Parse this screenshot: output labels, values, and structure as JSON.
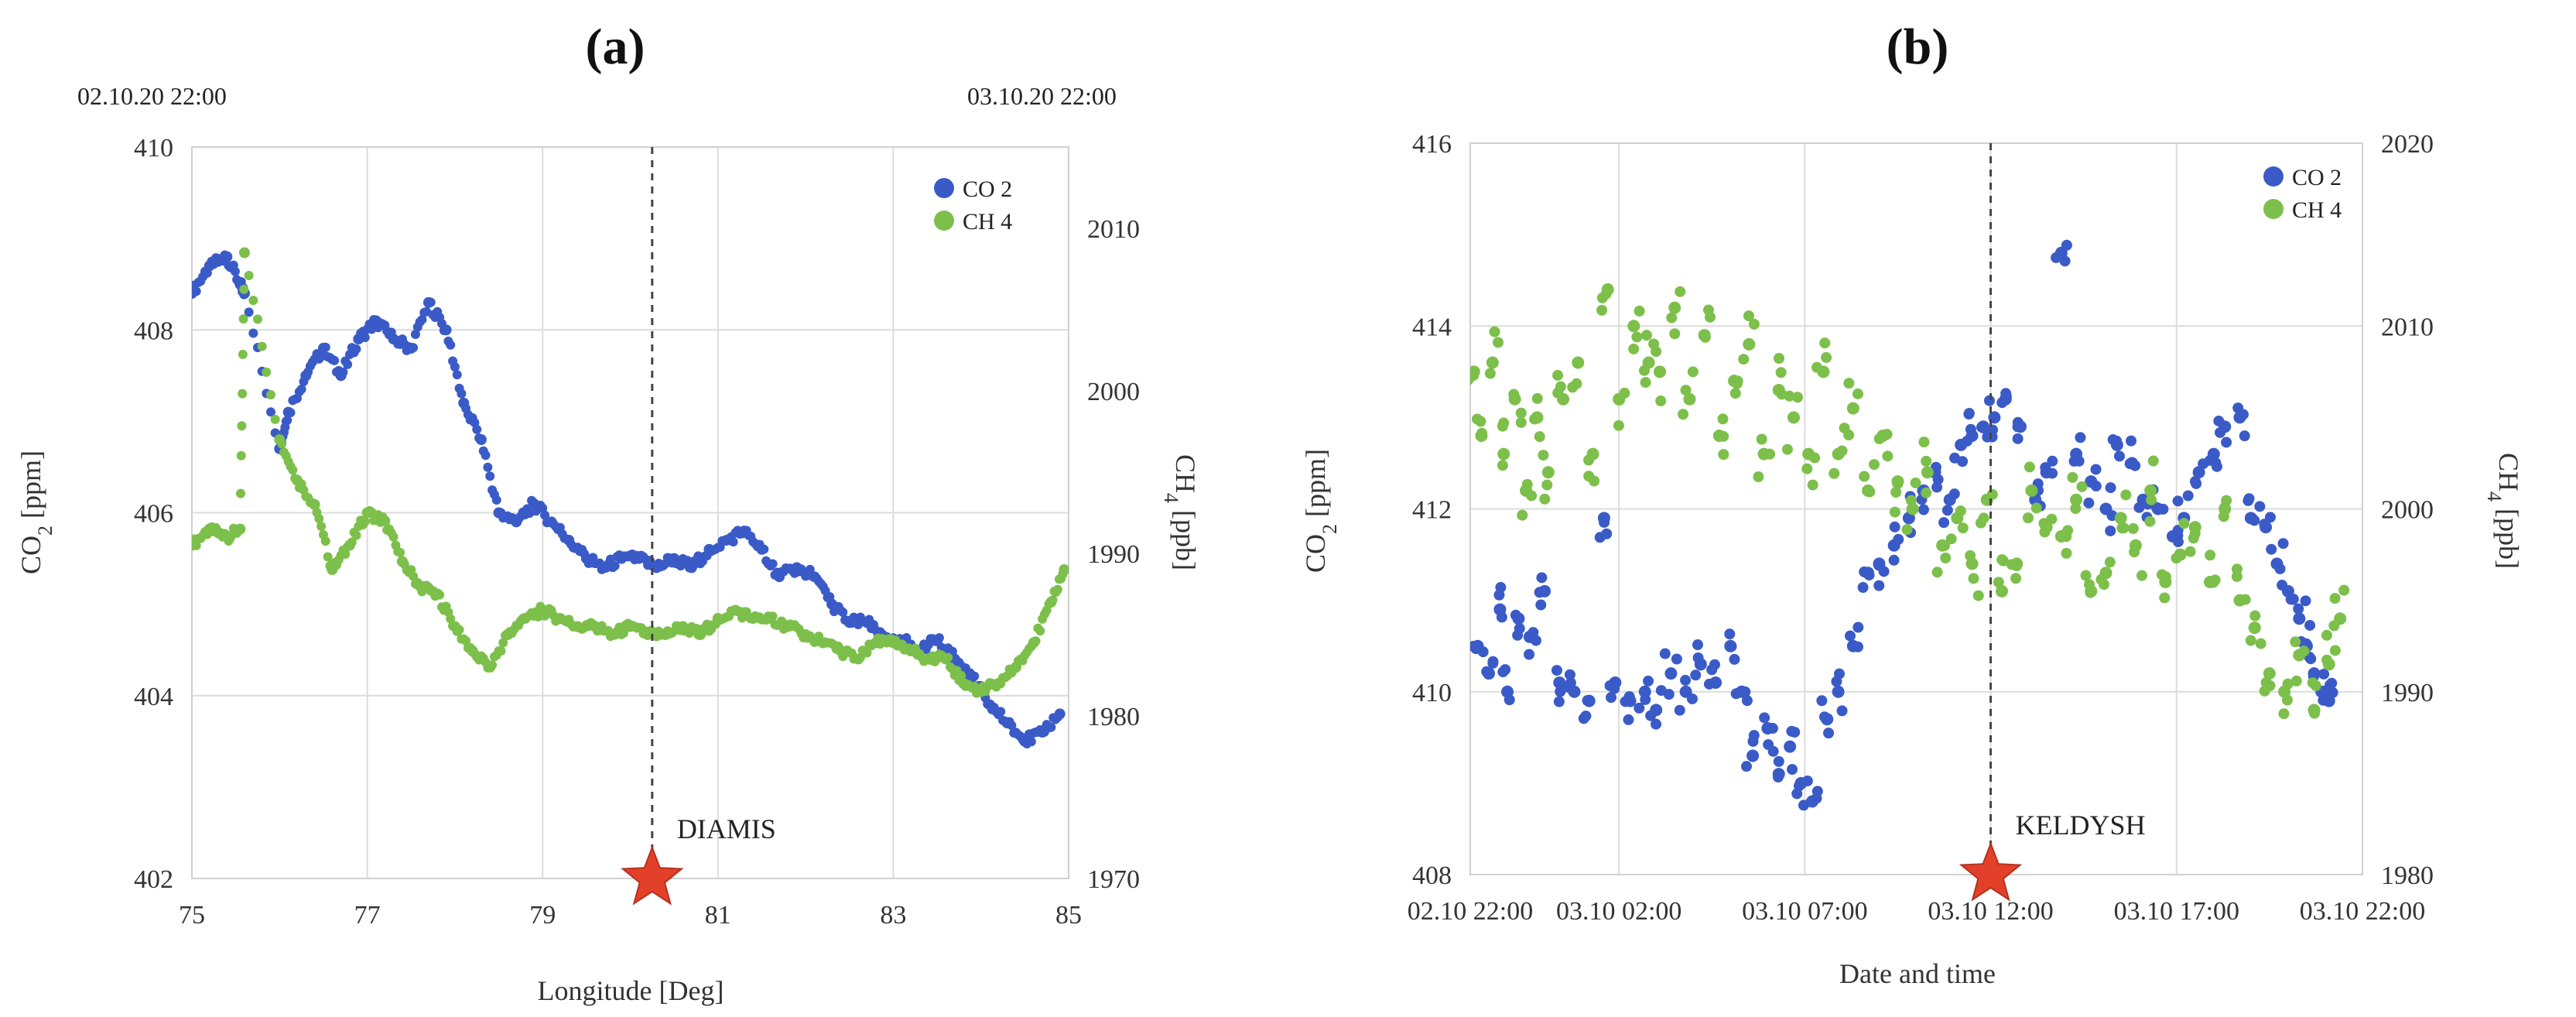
{
  "chart_data": [
    {
      "id": "a",
      "type": "scatter",
      "panel_label": "(a)",
      "top_left_timestamp": "02.10.20 22:00",
      "top_right_timestamp": "03.10.20 22:00",
      "xlabel": "Longitude [Deg]",
      "ylabel_left": "CO2 [ppm]",
      "ylabel_right": "CH4 [ppb]",
      "xlim": [
        75,
        85
      ],
      "ylim_left": [
        402,
        410
      ],
      "ylim_right": [
        1970,
        2015
      ],
      "x_ticks": [
        "75",
        "77",
        "79",
        "81",
        "83",
        "85"
      ],
      "y_ticks_left": [
        "402",
        "404",
        "406",
        "408",
        "410"
      ],
      "y_ticks_right": [
        "1970",
        "1980",
        "1990",
        "2000",
        "2010"
      ],
      "legend": [
        {
          "label": "CO 2",
          "color": "#3a5bc7"
        },
        {
          "label": "CH 4",
          "color": "#7cbf4a"
        }
      ],
      "legend_position": "top-right",
      "annotation": {
        "label": "DIAMIS",
        "x": 80.25,
        "marker": "red-star"
      },
      "series": [
        {
          "name": "CO2",
          "axis": "left",
          "color": "#3a5bc7",
          "x": [
            75.0,
            75.2,
            75.4,
            75.55,
            75.6,
            76.0,
            76.1,
            76.3,
            76.5,
            76.7,
            76.9,
            77.1,
            77.3,
            77.5,
            77.7,
            77.9,
            78.1,
            78.3,
            78.5,
            78.7,
            78.9,
            79.1,
            79.3,
            79.5,
            79.7,
            79.9,
            80.1,
            80.3,
            80.5,
            80.7,
            80.9,
            81.1,
            81.3,
            81.5,
            81.7,
            81.9,
            82.1,
            82.3,
            82.5,
            82.7,
            82.9,
            83.1,
            83.3,
            83.5,
            83.7,
            83.9,
            84.1,
            84.3,
            84.5,
            84.7,
            84.9
          ],
          "y": [
            408.4,
            408.7,
            408.8,
            408.5,
            408.4,
            406.7,
            407.1,
            407.5,
            407.8,
            407.5,
            407.9,
            408.1,
            407.9,
            407.8,
            408.3,
            408.0,
            407.2,
            406.8,
            406.0,
            405.9,
            406.1,
            405.9,
            405.7,
            405.5,
            405.4,
            405.5,
            405.5,
            405.4,
            405.5,
            405.4,
            405.6,
            405.7,
            405.8,
            405.6,
            405.3,
            405.4,
            405.3,
            405.0,
            404.8,
            404.8,
            404.6,
            404.6,
            404.5,
            404.6,
            404.4,
            404.2,
            403.9,
            403.7,
            403.5,
            403.6,
            403.8
          ]
        },
        {
          "name": "CH4",
          "axis": "right",
          "color": "#7cbf4a",
          "x": [
            75.0,
            75.2,
            75.4,
            75.55,
            75.6,
            76.0,
            76.2,
            76.4,
            76.6,
            76.8,
            77.0,
            77.2,
            77.4,
            77.6,
            77.8,
            78.0,
            78.2,
            78.4,
            78.6,
            78.8,
            79.0,
            79.2,
            79.4,
            79.6,
            79.8,
            80.0,
            80.2,
            80.4,
            80.6,
            80.8,
            81.0,
            81.2,
            81.4,
            81.6,
            81.8,
            82.0,
            82.2,
            82.4,
            82.6,
            82.8,
            83.0,
            83.2,
            83.4,
            83.6,
            83.8,
            84.0,
            84.2,
            84.4,
            84.6,
            84.8,
            84.95
          ],
          "y": [
            1990.5,
            1991.5,
            1991.0,
            1991.5,
            2008.5,
            1997.0,
            1994.5,
            1993.0,
            1989.0,
            1990.5,
            1992.5,
            1992.0,
            1989.5,
            1988.0,
            1987.5,
            1985.5,
            1984.0,
            1983.0,
            1985.0,
            1986.0,
            1986.5,
            1986.0,
            1985.5,
            1985.5,
            1985.0,
            1985.5,
            1985.0,
            1985.0,
            1985.5,
            1985.0,
            1986.0,
            1986.5,
            1986.0,
            1986.0,
            1985.5,
            1985.0,
            1984.5,
            1984.0,
            1983.5,
            1984.5,
            1984.5,
            1984.0,
            1983.5,
            1983.5,
            1982.0,
            1981.5,
            1982.0,
            1983.0,
            1984.5,
            1987.0,
            1989.0
          ]
        }
      ]
    },
    {
      "id": "b",
      "type": "scatter",
      "panel_label": "(b)",
      "xlabel": "Date and time",
      "ylabel_left": "CO2 [ppm]",
      "ylabel_right": "CH4 [ppb]",
      "xlim_hours": [
        0,
        24
      ],
      "ylim_left": [
        408,
        416
      ],
      "ylim_right": [
        1980,
        2020
      ],
      "x_tick_hours": [
        0,
        4,
        9,
        14,
        19,
        24
      ],
      "x_ticks": [
        "02.10 22:00",
        "03.10 02:00",
        "03.10 07:00",
        "03.10 12:00",
        "03.10 17:00",
        "03.10 22:00"
      ],
      "y_ticks_left": [
        "408",
        "410",
        "412",
        "414",
        "416"
      ],
      "y_ticks_right": [
        "1980",
        "1990",
        "2000",
        "2010",
        "2020"
      ],
      "legend": [
        {
          "label": "CO 2",
          "color": "#3a5bc7"
        },
        {
          "label": "CH 4",
          "color": "#7cbf4a"
        }
      ],
      "legend_position": "top-right",
      "annotation": {
        "label": "KELDYSH",
        "x_hours": 14.0,
        "marker": "red-star"
      },
      "series": [
        {
          "name": "CO2",
          "axis": "left",
          "color": "#3a5bc7",
          "x": [
            0.2,
            0.5,
            0.8,
            1.0,
            1.3,
            1.6,
            2.0,
            2.4,
            2.8,
            3.2,
            3.6,
            3.9,
            4.3,
            4.7,
            5.0,
            5.4,
            5.8,
            6.2,
            6.6,
            7.0,
            7.3,
            7.6,
            8.0,
            8.3,
            8.6,
            8.9,
            9.2,
            9.6,
            9.9,
            10.3,
            10.7,
            11.0,
            11.4,
            11.8,
            12.2,
            12.5,
            12.9,
            13.2,
            13.5,
            13.8,
            14.1,
            14.4,
            14.8,
            15.2,
            15.5,
            15.9,
            16.3,
            16.7,
            17.1,
            17.4,
            17.8,
            18.1,
            18.5,
            18.9,
            19.2,
            19.6,
            20.0,
            20.3,
            20.7,
            21.0,
            21.4,
            21.7,
            22.0,
            22.3,
            22.5,
            22.7,
            22.9,
            23.1
          ],
          "y": [
            410.5,
            410.2,
            410.9,
            410.0,
            410.8,
            410.6,
            411.1,
            410.1,
            410.0,
            409.9,
            411.9,
            410.1,
            409.9,
            410.0,
            409.8,
            410.2,
            410.0,
            410.3,
            410.1,
            410.5,
            410.0,
            409.3,
            409.6,
            409.1,
            409.4,
            409.0,
            408.8,
            409.7,
            410.0,
            410.5,
            411.3,
            411.4,
            411.6,
            411.9,
            412.2,
            412.4,
            412.1,
            412.7,
            412.8,
            412.9,
            413.0,
            413.2,
            412.9,
            412.1,
            412.4,
            414.8,
            412.6,
            412.3,
            412.0,
            412.7,
            412.5,
            412.1,
            412.0,
            411.7,
            411.9,
            412.4,
            412.6,
            412.9,
            413.0,
            411.9,
            411.8,
            411.4,
            411.1,
            410.8,
            410.5,
            410.2,
            410.0,
            409.9
          ]
        },
        {
          "name": "CH4",
          "axis": "right",
          "color": "#7cbf4a",
          "x": [
            0.1,
            0.3,
            0.6,
            0.9,
            1.2,
            1.5,
            1.8,
            2.1,
            2.5,
            2.9,
            3.3,
            3.7,
            4.0,
            4.4,
            4.8,
            5.1,
            5.5,
            5.9,
            6.3,
            6.7,
            7.1,
            7.5,
            7.9,
            8.3,
            8.7,
            9.1,
            9.5,
            9.9,
            10.3,
            10.7,
            11.1,
            11.5,
            11.9,
            12.3,
            12.7,
            13.1,
            13.5,
            13.9,
            14.3,
            14.7,
            15.1,
            15.5,
            15.9,
            16.3,
            16.7,
            17.1,
            17.5,
            17.9,
            18.3,
            18.7,
            19.1,
            19.5,
            19.9,
            20.3,
            20.7,
            21.1,
            21.5,
            21.9,
            22.3,
            22.7,
            23.1,
            23.4
          ],
          "y": [
            2007.5,
            2004.0,
            2008.0,
            2003.0,
            2006.0,
            2001.0,
            2005.0,
            2002.0,
            2006.0,
            2008.0,
            2003.0,
            2012.0,
            2006.0,
            2010.0,
            2008.0,
            2007.5,
            2011.0,
            2006.0,
            2009.5,
            2004.0,
            2007.0,
            2009.0,
            2003.0,
            2006.5,
            2005.0,
            2003.0,
            2007.5,
            2003.0,
            2005.5,
            2001.0,
            2004.0,
            2001.5,
            2000.0,
            2002.0,
            1998.0,
            1999.5,
            1997.0,
            2000.5,
            1995.5,
            1997.0,
            2001.0,
            1999.0,
            1998.5,
            2000.5,
            1995.5,
            1996.5,
            1999.5,
            1998.0,
            2001.0,
            1996.0,
            1997.5,
            1999.0,
            1996.0,
            2000.0,
            1995.0,
            1993.5,
            1991.0,
            1990.0,
            1992.0,
            1989.0,
            1991.5,
            1994.0
          ]
        }
      ]
    }
  ]
}
